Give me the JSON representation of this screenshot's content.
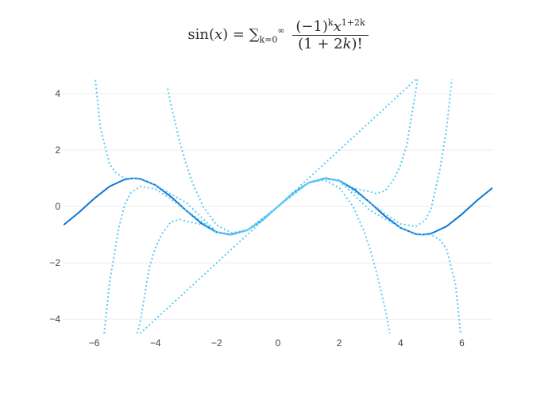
{
  "chart_data": {
    "type": "line",
    "title": "sin(x) = Σ_{k=0}^{∞} (−1)^k x^{1+2k} / (1+2k)!",
    "xlabel": "",
    "ylabel": "",
    "xlim": [
      -7,
      7
    ],
    "ylim": [
      -4.5,
      4.5
    ],
    "grid": "horizontal",
    "legend": "none",
    "x_ticks": [
      -6,
      -4,
      -2,
      0,
      2,
      4,
      6
    ],
    "x_tick_labels": [
      "−6",
      "−4",
      "−2",
      "0",
      "2",
      "4",
      "6"
    ],
    "y_ticks": [
      -4,
      -2,
      0,
      2,
      4
    ],
    "y_tick_labels": [
      "−4",
      "−2",
      "0",
      "2",
      "4"
    ],
    "series": [
      {
        "style": "solid",
        "color": "#0f75d4",
        "x": [
          -7,
          -6.5,
          -6,
          -5.5,
          -5,
          -4.712,
          -4.5,
          -4,
          -3.5,
          -3,
          -2.5,
          -2,
          -1.571,
          -1,
          -0.5,
          0,
          0.5,
          1,
          1.571,
          2,
          2.5,
          3,
          3.5,
          4,
          4.5,
          4.712,
          5,
          5.5,
          6,
          6.5,
          7
        ],
        "y": [
          -0.657,
          -0.215,
          0.279,
          0.706,
          0.959,
          1.0,
          0.978,
          0.757,
          0.351,
          -0.141,
          -0.598,
          -0.909,
          -1.0,
          -0.841,
          -0.479,
          0.0,
          0.479,
          0.841,
          1.0,
          0.909,
          0.598,
          0.141,
          -0.351,
          -0.757,
          -0.978,
          -1.0,
          -0.959,
          -0.706,
          -0.279,
          0.215,
          0.657
        ]
      },
      {
        "style": "dotted",
        "color": "#5ccbf5",
        "x": [
          -4.5,
          -4,
          -3,
          -2,
          -1,
          0,
          1,
          2,
          3,
          4,
          4.5
        ],
        "y": [
          -4.5,
          -4,
          -3,
          -2,
          -1,
          0,
          1,
          2,
          3,
          4,
          4.5
        ]
      },
      {
        "style": "dotted",
        "color": "#5ccbf5",
        "x": [
          -3.6,
          -3.5,
          -3.2,
          -3,
          -2.8,
          -2.449,
          -2,
          -1.5,
          -1,
          -0.5,
          0,
          0.5,
          1,
          1.5,
          2,
          2.449,
          2.8,
          3,
          3.2,
          3.5,
          3.75
        ],
        "y": [
          4.176,
          3.646,
          2.261,
          1.5,
          0.859,
          0.0,
          -0.667,
          -0.938,
          -0.833,
          -0.479,
          0.0,
          0.479,
          0.833,
          0.938,
          0.667,
          0.0,
          -0.859,
          -1.5,
          -2.261,
          -3.646,
          -5.039
        ]
      },
      {
        "style": "dotted",
        "color": "#5ccbf5",
        "x": [
          -4.6,
          -4.5,
          -4.2,
          -4,
          -3.8,
          -3.5,
          -3.2,
          -3,
          -2.5,
          -2,
          -1.5,
          -1,
          -0.5,
          0,
          0.5,
          1,
          1.5,
          2,
          2.5,
          3,
          3.2,
          3.5,
          3.8,
          4,
          4.2,
          4.5,
          4.9
        ],
        "y": [
          -4.495,
          -4.101,
          -2.158,
          -1.467,
          -0.997,
          -0.551,
          -0.458,
          -0.525,
          -0.635,
          -0.933,
          -0.997,
          -0.842,
          -0.479,
          0.0,
          0.479,
          0.842,
          0.997,
          0.933,
          0.635,
          0.525,
          0.458,
          0.551,
          0.997,
          1.467,
          2.158,
          4.101,
          7.4
        ]
      },
      {
        "style": "dotted",
        "color": "#5ccbf5",
        "x": [
          -5.7,
          -5.5,
          -5.2,
          -5,
          -4.8,
          -4.5,
          -4,
          -3.5,
          -3,
          -2,
          -1.5,
          -1,
          0,
          1,
          1.5,
          2,
          3,
          3.5,
          4,
          4.5,
          4.8,
          5,
          5.3,
          5.5,
          5.7
        ],
        "y": [
          -4.776,
          -2.716,
          -0.779,
          0.074,
          0.49,
          0.71,
          0.618,
          0.265,
          -0.137,
          -0.909,
          -0.997,
          -0.841,
          0.0,
          0.841,
          0.997,
          0.909,
          0.137,
          -0.265,
          -0.618,
          -0.71,
          -0.49,
          -0.074,
          1.4,
          2.716,
          4.776
        ]
      },
      {
        "style": "dotted",
        "color": "#5ccbf5",
        "x": [
          -6,
          -5.8,
          -5.5,
          -5.3,
          -5,
          -4.5,
          -4,
          -3,
          -2,
          -1.5,
          -1,
          0,
          1,
          1.5,
          2,
          3,
          4,
          4.5,
          5,
          5.3,
          5.5,
          5.8,
          6
        ],
        "y": [
          4.9,
          2.8,
          1.5,
          1.2,
          1.0,
          1.0,
          0.75,
          0.14,
          -0.909,
          -0.997,
          -0.841,
          0.0,
          0.841,
          0.997,
          0.909,
          -0.14,
          -0.75,
          -1.0,
          -1.0,
          -1.2,
          -1.5,
          -2.8,
          -4.9
        ]
      }
    ]
  }
}
